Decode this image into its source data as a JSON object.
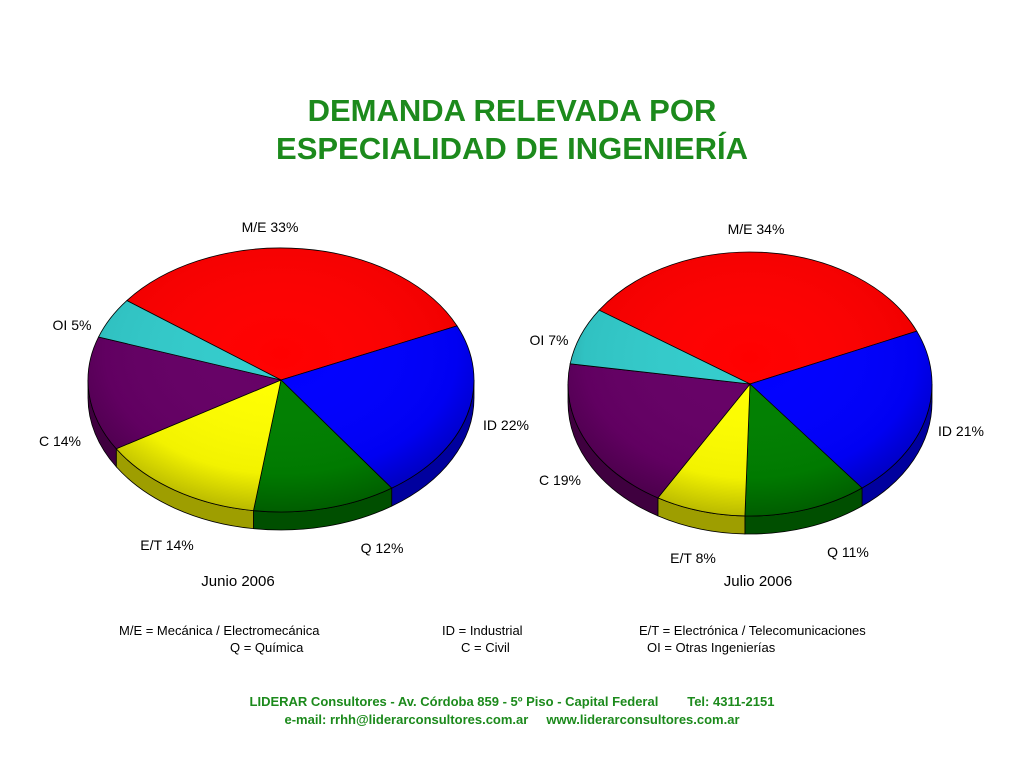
{
  "title": {
    "line1": "DEMANDA RELEVADA POR",
    "line2": "ESPECIALIDAD DE INGENIERÍA"
  },
  "chart_data": [
    {
      "type": "pie",
      "caption": "Junio 2006",
      "slices": [
        {
          "key": "M/E",
          "label": "M/E 33%",
          "value": 33,
          "color": "#ff0000"
        },
        {
          "key": "ID",
          "label": "ID 22%",
          "value": 22,
          "color": "#0000ff"
        },
        {
          "key": "Q",
          "label": "Q 12%",
          "value": 12,
          "color": "#008000"
        },
        {
          "key": "E/T",
          "label": "E/T 14%",
          "value": 14,
          "color": "#ffff00"
        },
        {
          "key": "C",
          "label": "C 14%",
          "value": 14,
          "color": "#660066"
        },
        {
          "key": "OI",
          "label": "OI 5%",
          "value": 5,
          "color": "#33cccc"
        }
      ]
    },
    {
      "type": "pie",
      "caption": "Julio 2006",
      "slices": [
        {
          "key": "M/E",
          "label": "M/E 34%",
          "value": 34,
          "color": "#ff0000"
        },
        {
          "key": "ID",
          "label": "ID 21%",
          "value": 21,
          "color": "#0000ff"
        },
        {
          "key": "Q",
          "label": "Q 11%",
          "value": 11,
          "color": "#008000"
        },
        {
          "key": "E/T",
          "label": "E/T 8%",
          "value": 8,
          "color": "#ffff00"
        },
        {
          "key": "C",
          "label": "C 19%",
          "value": 19,
          "color": "#660066"
        },
        {
          "key": "OI",
          "label": "OI 7%",
          "value": 7,
          "color": "#33cccc"
        }
      ]
    }
  ],
  "legend": {
    "me": "M/E = Mecánica / Electromecánica",
    "id": "ID = Industrial",
    "et": "E/T = Electrónica / Telecomunicaciones",
    "q": "Q = Química",
    "c": "C = Civil",
    "oi": "OI = Otras Ingenierías"
  },
  "footer": {
    "line1": "LIDERAR Consultores - Av. Córdoba 859 - 5º Piso - Capital Federal        Tel: 4311-2151",
    "line2": "e-mail: rrhh@liderarconsultores.com.ar     www.liderarconsultores.com.ar"
  }
}
